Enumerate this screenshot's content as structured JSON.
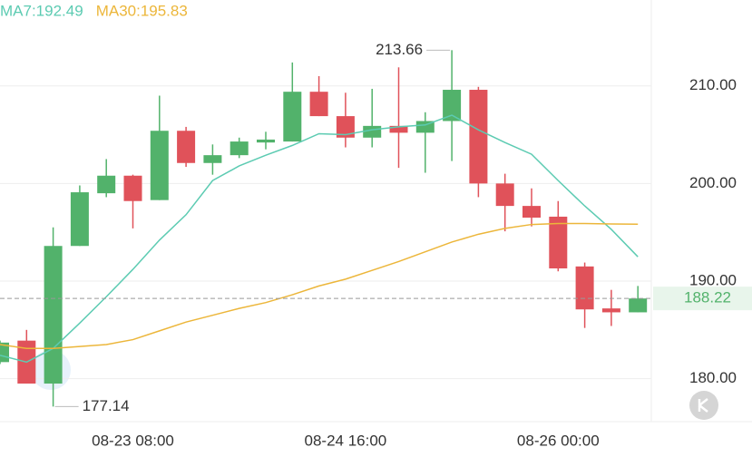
{
  "chart_data": {
    "type": "candlestick",
    "categories": [
      null,
      null,
      null,
      null,
      null,
      "08-23 08:00",
      null,
      null,
      null,
      null,
      null,
      null,
      null,
      "08-24 16:00",
      null,
      null,
      null,
      null,
      null,
      null,
      null,
      "08-26 00:00",
      null,
      null,
      null
    ],
    "open": [
      181.7,
      183.9,
      179.5,
      193.6,
      199.0,
      200.8,
      198.3,
      205.4,
      202.1,
      202.9,
      204.2,
      204.3,
      209.4,
      206.9,
      204.7,
      205.9,
      205.2,
      206.4,
      209.6,
      200.0,
      197.7,
      196.6,
      191.5,
      187.2,
      186.8
    ],
    "high": [
      183.9,
      185.0,
      195.5,
      199.8,
      202.5,
      200.9,
      209.0,
      205.8,
      204.0,
      204.7,
      205.3,
      212.4,
      211.0,
      209.3,
      209.7,
      211.9,
      207.3,
      213.66,
      209.9,
      201.0,
      199.5,
      198.2,
      191.9,
      189.1,
      189.5
    ],
    "low": [
      181.5,
      179.5,
      177.14,
      193.6,
      198.6,
      195.4,
      198.3,
      201.7,
      200.9,
      202.6,
      203.5,
      204.3,
      206.9,
      203.7,
      203.7,
      201.6,
      201.1,
      202.3,
      198.6,
      195.1,
      195.6,
      191.0,
      185.2,
      185.4,
      186.8
    ],
    "close": [
      183.7,
      179.5,
      193.6,
      199.1,
      200.8,
      198.2,
      205.4,
      202.1,
      202.9,
      204.3,
      204.5,
      209.4,
      206.9,
      204.7,
      205.9,
      205.2,
      206.4,
      209.6,
      200.0,
      197.7,
      196.5,
      191.3,
      187.1,
      186.8,
      188.22
    ],
    "up_color": "#52b26b",
    "down_color": "#e0525a",
    "series": [
      {
        "name": "MA7:192.49",
        "color": "#5ccbb2",
        "values": [
          182.4,
          181.7,
          183.1,
          185.7,
          188.4,
          191.2,
          194.2,
          196.8,
          200.3,
          201.8,
          202.9,
          203.9,
          205.1,
          205.0,
          205.5,
          205.8,
          206.0,
          207.0,
          205.5,
          204.2,
          203.0,
          200.3,
          197.7,
          195.3,
          192.49
        ]
      },
      {
        "name": "MA30:195.83",
        "color": "#ecb63a",
        "values": [
          183.5,
          183.1,
          183.1,
          183.3,
          183.5,
          184.0,
          184.9,
          185.8,
          186.5,
          187.2,
          187.8,
          188.6,
          189.5,
          190.2,
          191.1,
          192.0,
          193.0,
          194.0,
          194.8,
          195.4,
          195.8,
          195.9,
          195.9,
          195.85,
          195.83
        ]
      }
    ],
    "ylim": [
      175.6,
      218.8
    ],
    "yticks": [
      {
        "value": 180,
        "label": "180.00"
      },
      {
        "value": 190,
        "label": "190.00"
      },
      {
        "value": 200,
        "label": "200.00"
      },
      {
        "value": 210,
        "label": "210.00"
      }
    ],
    "grid": true
  }
}
